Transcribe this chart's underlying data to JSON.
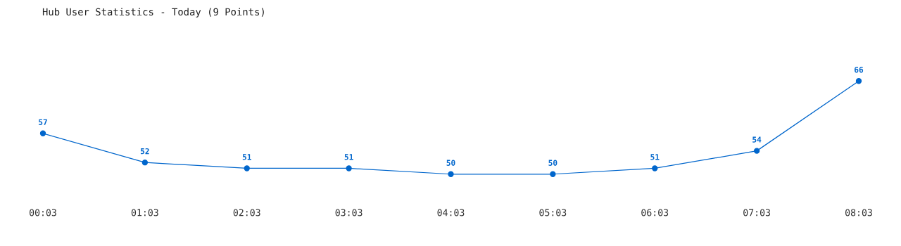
{
  "chart_data": {
    "type": "line",
    "title": "Hub User Statistics - Today (9 Points)",
    "categories": [
      "00:03",
      "01:03",
      "02:03",
      "03:03",
      "04:03",
      "05:03",
      "06:03",
      "07:03",
      "08:03"
    ],
    "series": [
      {
        "color": "#0066cc",
        "values": [
          57,
          52,
          51,
          51,
          50,
          50,
          51,
          54,
          66
        ]
      }
    ],
    "tick_labels": "x",
    "data_labels": true,
    "marker": "circle",
    "line_style": "solid",
    "grid": false,
    "legend": false
  }
}
